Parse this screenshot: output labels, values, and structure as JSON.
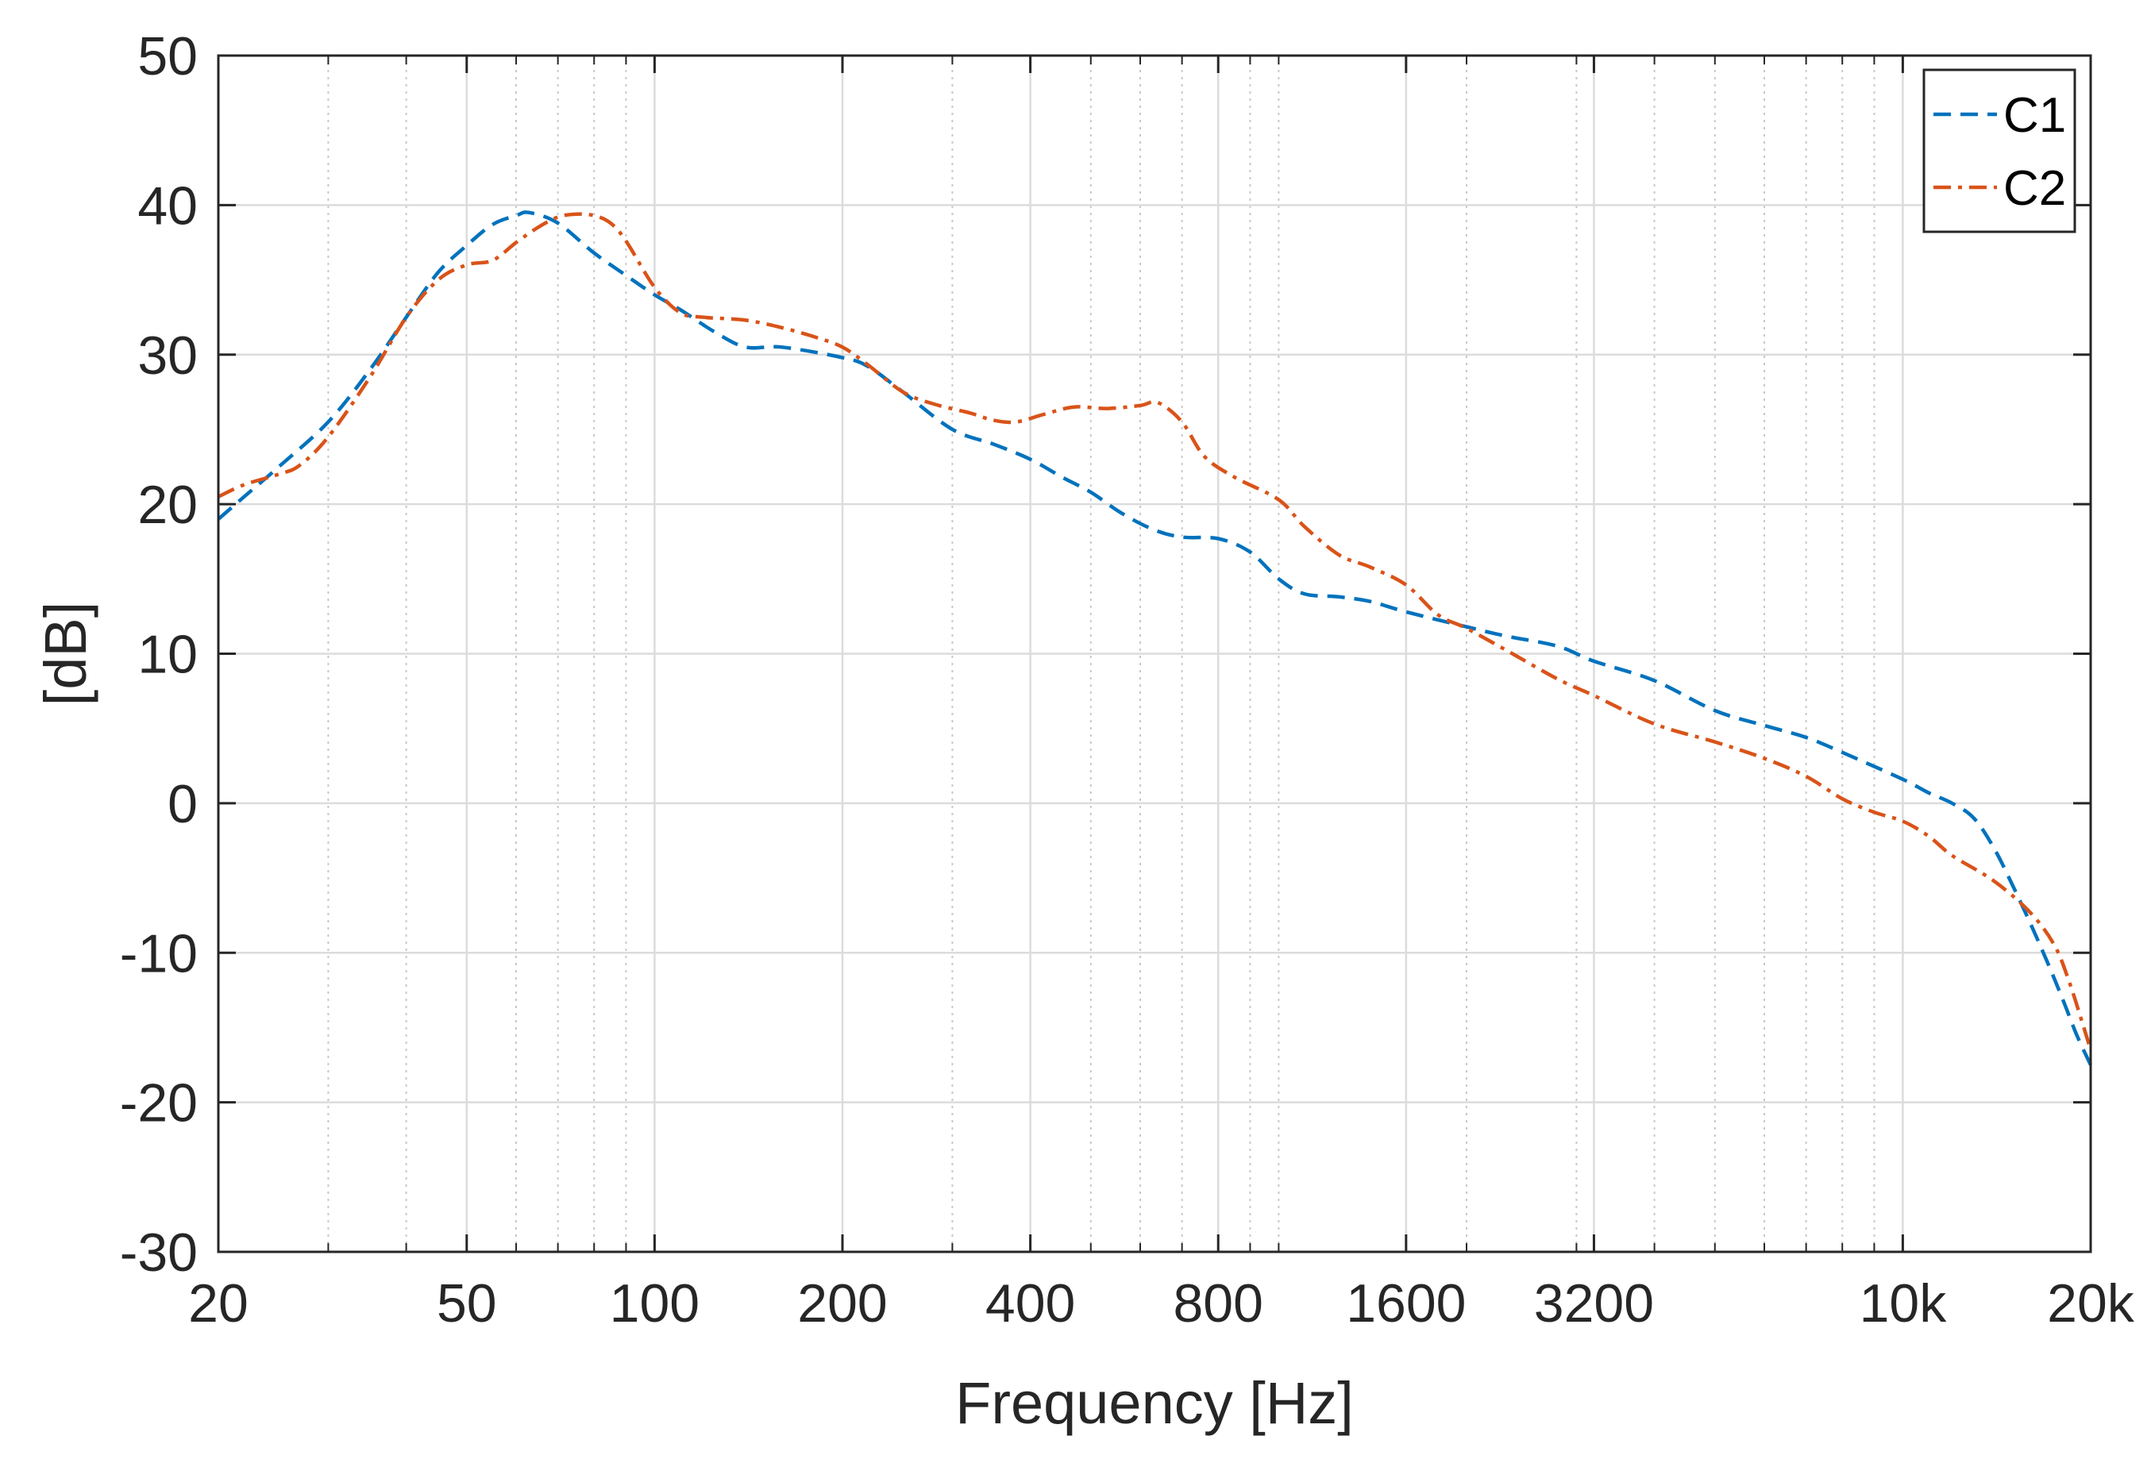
{
  "chart_data": {
    "type": "line",
    "title": "",
    "xlabel": "Frequency [Hz]",
    "ylabel": "[dB]",
    "xscale": "log",
    "xlim": [
      20,
      20000
    ],
    "ylim": [
      -30,
      50
    ],
    "grid": true,
    "minor_grid": true,
    "legend_position": "top-right",
    "y_ticks": [
      {
        "value": 50,
        "label": "50"
      },
      {
        "value": 40,
        "label": "40"
      },
      {
        "value": 30,
        "label": "30"
      },
      {
        "value": 20,
        "label": "20"
      },
      {
        "value": 10,
        "label": "10"
      },
      {
        "value": 0,
        "label": "0"
      },
      {
        "value": -10,
        "label": "-10"
      },
      {
        "value": -20,
        "label": "-20"
      },
      {
        "value": -30,
        "label": "-30"
      }
    ],
    "x_ticks": [
      {
        "value": 20,
        "label": "20"
      },
      {
        "value": 50,
        "label": "50"
      },
      {
        "value": 100,
        "label": "100"
      },
      {
        "value": 200,
        "label": "200"
      },
      {
        "value": 400,
        "label": "400"
      },
      {
        "value": 800,
        "label": "800"
      },
      {
        "value": 1600,
        "label": "1600"
      },
      {
        "value": 3200,
        "label": "3200"
      },
      {
        "value": 10000,
        "label": "10k"
      },
      {
        "value": 20000,
        "label": "20k"
      }
    ],
    "minor_x": [
      30,
      40,
      60,
      70,
      80,
      90,
      300,
      500,
      600,
      700,
      900,
      1000,
      2000,
      3000,
      4000,
      5000,
      6000,
      7000,
      8000,
      9000
    ],
    "series": [
      {
        "name": "C1",
        "color": "#0072BD",
        "dash": "dashed",
        "points": [
          [
            20,
            19
          ],
          [
            22,
            20.5
          ],
          [
            25,
            22.5
          ],
          [
            30,
            25.5
          ],
          [
            35,
            29
          ],
          [
            40,
            32.5
          ],
          [
            45,
            35.5
          ],
          [
            50,
            37.3
          ],
          [
            55,
            38.7
          ],
          [
            60,
            39.3
          ],
          [
            63,
            39.5
          ],
          [
            70,
            38.8
          ],
          [
            80,
            36.8
          ],
          [
            90,
            35.3
          ],
          [
            100,
            34
          ],
          [
            110,
            33
          ],
          [
            125,
            31.5
          ],
          [
            140,
            30.5
          ],
          [
            160,
            30.5
          ],
          [
            200,
            29.8
          ],
          [
            220,
            29.2
          ],
          [
            250,
            27.5
          ],
          [
            300,
            25
          ],
          [
            350,
            24
          ],
          [
            400,
            23
          ],
          [
            450,
            21.8
          ],
          [
            500,
            20.8
          ],
          [
            560,
            19.4
          ],
          [
            630,
            18.3
          ],
          [
            700,
            17.8
          ],
          [
            800,
            17.7
          ],
          [
            900,
            16.8
          ],
          [
            1000,
            15
          ],
          [
            1100,
            14
          ],
          [
            1250,
            13.8
          ],
          [
            1400,
            13.5
          ],
          [
            1600,
            12.8
          ],
          [
            2000,
            11.8
          ],
          [
            2300,
            11.2
          ],
          [
            2800,
            10.5
          ],
          [
            3200,
            9.5
          ],
          [
            4000,
            8.2
          ],
          [
            5000,
            6.2
          ],
          [
            6000,
            5.2
          ],
          [
            7000,
            4.4
          ],
          [
            8000,
            3.4
          ],
          [
            10000,
            1.6
          ],
          [
            11000,
            0.7
          ],
          [
            12000,
            0
          ],
          [
            13000,
            -1
          ],
          [
            14000,
            -3
          ],
          [
            15000,
            -5.5
          ],
          [
            16000,
            -8
          ],
          [
            17000,
            -10.5
          ],
          [
            18000,
            -13
          ],
          [
            19000,
            -15.5
          ],
          [
            20000,
            -17.5
          ]
        ]
      },
      {
        "name": "C2",
        "color": "#D95319",
        "dash": "dashdot",
        "points": [
          [
            20,
            20.5
          ],
          [
            22,
            21.3
          ],
          [
            25,
            22
          ],
          [
            27,
            22.6
          ],
          [
            30,
            24.5
          ],
          [
            35,
            28.5
          ],
          [
            40,
            32.5
          ],
          [
            45,
            35
          ],
          [
            50,
            36
          ],
          [
            55,
            36.3
          ],
          [
            60,
            37.5
          ],
          [
            65,
            38.5
          ],
          [
            70,
            39.2
          ],
          [
            75,
            39.4
          ],
          [
            80,
            39.3
          ],
          [
            85,
            38.8
          ],
          [
            90,
            37.6
          ],
          [
            100,
            34.5
          ],
          [
            110,
            32.8
          ],
          [
            120,
            32.5
          ],
          [
            140,
            32.3
          ],
          [
            160,
            31.8
          ],
          [
            180,
            31.2
          ],
          [
            200,
            30.5
          ],
          [
            220,
            29.3
          ],
          [
            250,
            27.5
          ],
          [
            280,
            26.7
          ],
          [
            320,
            26.1
          ],
          [
            350,
            25.6
          ],
          [
            380,
            25.5
          ],
          [
            420,
            26
          ],
          [
            470,
            26.5
          ],
          [
            530,
            26.4
          ],
          [
            600,
            26.6
          ],
          [
            640,
            26.8
          ],
          [
            700,
            25.5
          ],
          [
            760,
            23.2
          ],
          [
            850,
            21.8
          ],
          [
            1000,
            20.3
          ],
          [
            1100,
            18.5
          ],
          [
            1250,
            16.6
          ],
          [
            1400,
            15.8
          ],
          [
            1600,
            14.6
          ],
          [
            1800,
            12.6
          ],
          [
            2000,
            11.7
          ],
          [
            2300,
            10.3
          ],
          [
            2800,
            8.3
          ],
          [
            3200,
            7.2
          ],
          [
            4000,
            5.3
          ],
          [
            5000,
            4.1
          ],
          [
            6000,
            3
          ],
          [
            7000,
            1.8
          ],
          [
            8000,
            0.3
          ],
          [
            9000,
            -0.6
          ],
          [
            10000,
            -1.2
          ],
          [
            11000,
            -2.2
          ],
          [
            12000,
            -3.5
          ],
          [
            14000,
            -5.2
          ],
          [
            16000,
            -7.3
          ],
          [
            17500,
            -9.5
          ],
          [
            18500,
            -12
          ],
          [
            19500,
            -15
          ],
          [
            20000,
            -16.5
          ]
        ]
      }
    ]
  }
}
